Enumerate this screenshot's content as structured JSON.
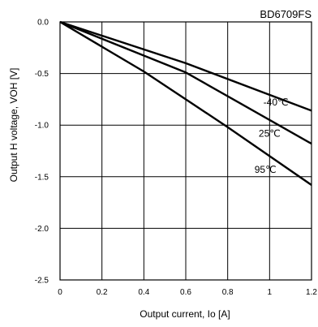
{
  "chart_data": {
    "type": "line",
    "title": "BD6709FS",
    "xlabel": "Output current, Io [A]",
    "ylabel": "Output H voltage, VOH [V]",
    "xlim": [
      0,
      1.2
    ],
    "ylim": [
      -2.5,
      0.0
    ],
    "grid": true,
    "x_ticks": [
      "0",
      "0.2",
      "0.4",
      "0.6",
      "0.8",
      "1",
      "1.2"
    ],
    "y_ticks": [
      "0.0",
      "-0.5",
      "-1.0",
      "-1.5",
      "-2.0",
      "-2.5"
    ],
    "series": [
      {
        "name": "-40℃",
        "x": [
          0,
          0.6,
          1.2
        ],
        "y": [
          0.0,
          -0.4,
          -0.86
        ]
      },
      {
        "name": "25℃",
        "x": [
          0,
          0.6,
          1.2
        ],
        "y": [
          0.0,
          -0.49,
          -1.18
        ]
      },
      {
        "name": "95℃",
        "x": [
          0,
          0.4,
          0.8,
          1.2
        ],
        "y": [
          0.0,
          -0.48,
          -1.02,
          -1.58
        ]
      }
    ]
  }
}
